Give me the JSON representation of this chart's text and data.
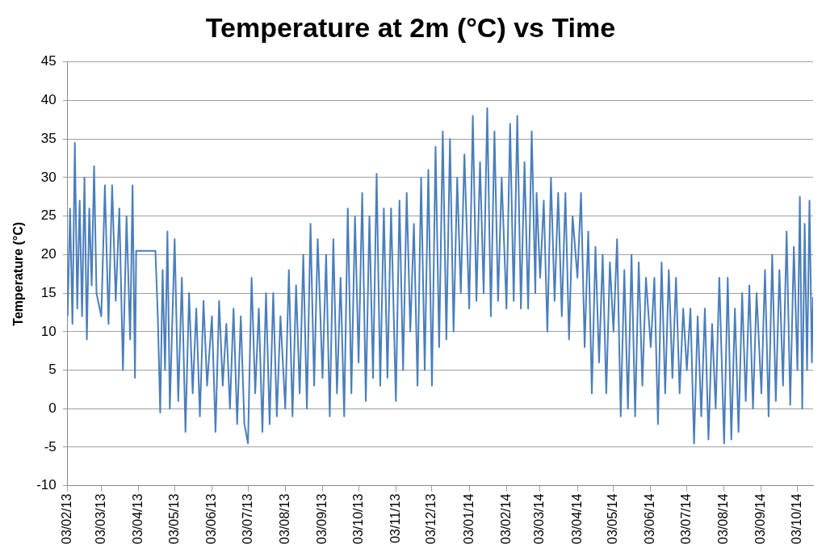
{
  "chart_data": {
    "type": "line",
    "title": "Temperature at 2m (°C) vs Time",
    "ylabel": "Temperature (°C)",
    "xlim": [
      "2013-02-03",
      "2014-10-16"
    ],
    "xticks": [
      {
        "value": "2013-02-03",
        "label": "03/02/13"
      },
      {
        "value": "2013-03-03",
        "label": "03/03/13"
      },
      {
        "value": "2013-04-03",
        "label": "03/04/13"
      },
      {
        "value": "2013-05-03",
        "label": "03/05/13"
      },
      {
        "value": "2013-06-03",
        "label": "03/06/13"
      },
      {
        "value": "2013-07-03",
        "label": "03/07/13"
      },
      {
        "value": "2013-08-03",
        "label": "03/08/13"
      },
      {
        "value": "2013-09-03",
        "label": "03/09/13"
      },
      {
        "value": "2013-10-03",
        "label": "03/10/13"
      },
      {
        "value": "2013-11-03",
        "label": "03/11/13"
      },
      {
        "value": "2013-12-03",
        "label": "03/12/13"
      },
      {
        "value": "2014-01-03",
        "label": "03/01/14"
      },
      {
        "value": "2014-02-03",
        "label": "03/02/14"
      },
      {
        "value": "2014-03-03",
        "label": "03/03/14"
      },
      {
        "value": "2014-04-03",
        "label": "03/04/14"
      },
      {
        "value": "2014-05-03",
        "label": "03/05/14"
      },
      {
        "value": "2014-06-03",
        "label": "03/06/14"
      },
      {
        "value": "2014-07-03",
        "label": "03/07/14"
      },
      {
        "value": "2014-08-03",
        "label": "03/08/14"
      },
      {
        "value": "2014-09-03",
        "label": "03/09/14"
      },
      {
        "value": "2014-10-03",
        "label": "03/10/14"
      }
    ],
    "ylim": [
      -10,
      45
    ],
    "yticks": [
      -10,
      -5,
      0,
      5,
      10,
      15,
      20,
      25,
      30,
      35,
      40,
      45
    ],
    "grid": "y",
    "legend": false,
    "marker": "none",
    "line_style": "solid",
    "x": [
      "2013-02-03",
      "2013-02-05",
      "2013-02-07",
      "2013-02-09",
      "2013-02-11",
      "2013-02-13",
      "2013-02-15",
      "2013-02-17",
      "2013-02-19",
      "2013-02-21",
      "2013-02-23",
      "2013-02-25",
      "2013-02-27",
      "2013-03-03",
      "2013-03-06",
      "2013-03-09",
      "2013-03-12",
      "2013-03-15",
      "2013-03-18",
      "2013-03-21",
      "2013-03-24",
      "2013-03-27",
      "2013-03-29",
      "2013-03-31",
      "2013-04-01",
      "2013-04-17",
      "2013-04-19",
      "2013-04-21",
      "2013-04-23",
      "2013-04-25",
      "2013-04-27",
      "2013-04-29",
      "2013-05-03",
      "2013-05-06",
      "2013-05-09",
      "2013-05-12",
      "2013-05-15",
      "2013-05-18",
      "2013-05-21",
      "2013-05-24",
      "2013-05-27",
      "2013-05-30",
      "2013-06-03",
      "2013-06-06",
      "2013-06-09",
      "2013-06-12",
      "2013-06-15",
      "2013-06-18",
      "2013-06-21",
      "2013-06-24",
      "2013-06-27",
      "2013-06-30",
      "2013-07-03",
      "2013-07-06",
      "2013-07-09",
      "2013-07-12",
      "2013-07-15",
      "2013-07-18",
      "2013-07-21",
      "2013-07-24",
      "2013-07-27",
      "2013-07-30",
      "2013-08-03",
      "2013-08-06",
      "2013-08-09",
      "2013-08-12",
      "2013-08-15",
      "2013-08-18",
      "2013-08-21",
      "2013-08-24",
      "2013-08-27",
      "2013-08-30",
      "2013-09-03",
      "2013-09-06",
      "2013-09-09",
      "2013-09-12",
      "2013-09-15",
      "2013-09-18",
      "2013-09-21",
      "2013-09-24",
      "2013-09-27",
      "2013-09-30",
      "2013-10-03",
      "2013-10-06",
      "2013-10-09",
      "2013-10-12",
      "2013-10-15",
      "2013-10-18",
      "2013-10-21",
      "2013-10-24",
      "2013-10-27",
      "2013-10-30",
      "2013-11-03",
      "2013-11-06",
      "2013-11-09",
      "2013-11-12",
      "2013-11-15",
      "2013-11-18",
      "2013-11-21",
      "2013-11-24",
      "2013-11-27",
      "2013-11-30",
      "2013-12-03",
      "2013-12-06",
      "2013-12-09",
      "2013-12-12",
      "2013-12-15",
      "2013-12-18",
      "2013-12-21",
      "2013-12-24",
      "2013-12-27",
      "2013-12-30",
      "2014-01-03",
      "2014-01-06",
      "2014-01-09",
      "2014-01-12",
      "2014-01-15",
      "2014-01-18",
      "2014-01-21",
      "2014-01-24",
      "2014-01-27",
      "2014-01-30",
      "2014-02-03",
      "2014-02-06",
      "2014-02-09",
      "2014-02-12",
      "2014-02-15",
      "2014-02-18",
      "2014-02-21",
      "2014-02-24",
      "2014-02-27",
      "2014-02-28",
      "2014-03-03",
      "2014-03-06",
      "2014-03-09",
      "2014-03-12",
      "2014-03-15",
      "2014-03-18",
      "2014-03-21",
      "2014-03-24",
      "2014-03-27",
      "2014-03-30",
      "2014-04-03",
      "2014-04-06",
      "2014-04-09",
      "2014-04-12",
      "2014-04-15",
      "2014-04-18",
      "2014-04-21",
      "2014-04-24",
      "2014-04-27",
      "2014-04-30",
      "2014-05-03",
      "2014-05-06",
      "2014-05-09",
      "2014-05-12",
      "2014-05-15",
      "2014-05-18",
      "2014-05-21",
      "2014-05-24",
      "2014-05-27",
      "2014-05-30",
      "2014-06-03",
      "2014-06-06",
      "2014-06-09",
      "2014-06-12",
      "2014-06-15",
      "2014-06-18",
      "2014-06-21",
      "2014-06-24",
      "2014-06-27",
      "2014-06-30",
      "2014-07-03",
      "2014-07-06",
      "2014-07-09",
      "2014-07-12",
      "2014-07-15",
      "2014-07-18",
      "2014-07-21",
      "2014-07-24",
      "2014-07-27",
      "2014-07-30",
      "2014-08-03",
      "2014-08-06",
      "2014-08-09",
      "2014-08-12",
      "2014-08-15",
      "2014-08-18",
      "2014-08-21",
      "2014-08-24",
      "2014-08-27",
      "2014-08-30",
      "2014-09-03",
      "2014-09-06",
      "2014-09-09",
      "2014-09-12",
      "2014-09-15",
      "2014-09-18",
      "2014-09-21",
      "2014-09-24",
      "2014-09-27",
      "2014-09-30",
      "2014-10-03",
      "2014-10-05",
      "2014-10-07",
      "2014-10-09",
      "2014-10-11",
      "2014-10-13",
      "2014-10-15",
      "2014-10-16"
    ],
    "series": [
      {
        "color": "#4a7ebb",
        "values": [
          12,
          26,
          11,
          34.5,
          13,
          27,
          12,
          30,
          9,
          26,
          16,
          31.5,
          15,
          12,
          29,
          11,
          29,
          14,
          26,
          5,
          25,
          9,
          29,
          4,
          20.5,
          20.5,
          12,
          -0.5,
          18,
          5,
          23,
          0,
          22,
          1,
          17,
          -3,
          15,
          2,
          13,
          -1,
          14,
          3,
          12,
          -3,
          14,
          3,
          11,
          0,
          13,
          -2,
          12,
          -2,
          -4.5,
          17,
          2,
          13,
          -3,
          15,
          -2,
          15,
          -1,
          12,
          0,
          18,
          -1,
          16,
          2,
          20,
          0,
          24,
          3,
          22,
          4,
          20,
          -1,
          22,
          2,
          17,
          -1,
          26,
          2,
          25,
          6,
          28,
          1,
          25,
          4,
          30.5,
          3,
          26,
          4,
          26,
          1,
          27,
          5,
          28,
          10,
          24,
          3,
          30,
          5,
          31,
          3,
          34,
          8,
          36,
          9,
          35,
          10,
          30,
          15,
          33,
          13,
          38,
          14,
          32,
          15,
          39,
          12,
          36,
          14,
          30,
          13,
          37,
          14,
          38,
          13,
          32,
          13,
          36,
          15,
          28,
          17,
          27,
          10,
          30,
          14,
          28,
          12,
          28,
          9,
          25,
          17,
          28,
          8,
          23,
          2,
          21,
          6,
          20,
          2,
          19,
          10,
          22,
          -1,
          18,
          0,
          20,
          -1,
          19,
          3,
          17,
          8,
          17,
          -2,
          19,
          2,
          18,
          4,
          17,
          2,
          13,
          5,
          13,
          -4.5,
          12,
          -1,
          13,
          -4,
          11,
          0,
          17,
          -4.5,
          17,
          -4,
          13,
          -3,
          15,
          1,
          16,
          0,
          15,
          2,
          18,
          -1,
          20,
          1,
          18,
          3,
          23,
          0.5,
          21,
          5,
          27.5,
          0,
          24,
          5,
          27,
          6,
          14.5
        ]
      }
    ]
  }
}
